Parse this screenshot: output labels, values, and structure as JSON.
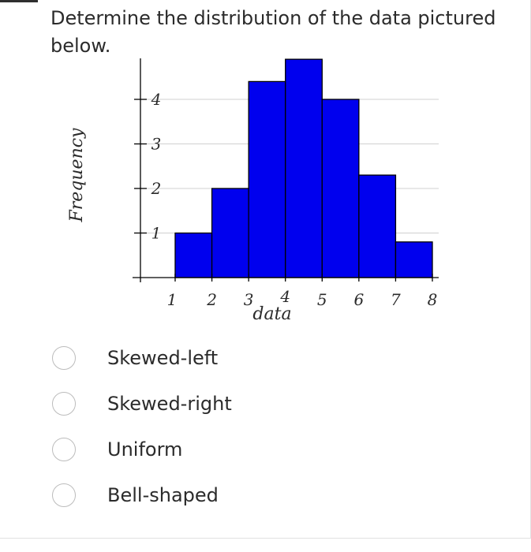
{
  "question": {
    "text": "Determine the distribution of the data pictured below."
  },
  "chart_data": {
    "type": "bar",
    "title": "",
    "xlabel": "data",
    "ylabel": "Frequency",
    "categories": [
      "1-2",
      "2-3",
      "3-4",
      "4-5",
      "5-6",
      "6-7",
      "7-8"
    ],
    "bin_edges": [
      1,
      2,
      3,
      4,
      5,
      6,
      7,
      8
    ],
    "values": [
      1,
      2,
      4.4,
      4.9,
      4.0,
      2.3,
      0.8
    ],
    "x_ticks": [
      "1",
      "2",
      "3",
      "4",
      "5",
      "6",
      "7",
      "8"
    ],
    "y_ticks": [
      "1",
      "2",
      "3",
      "4"
    ],
    "xlim": [
      0,
      8.2
    ],
    "ylim": [
      0,
      5.2
    ],
    "grid": true,
    "bar_color": "#0000ee",
    "edge_color": "#000000"
  },
  "options": [
    {
      "label": "Skewed-left"
    },
    {
      "label": "Skewed-right"
    },
    {
      "label": "Uniform"
    },
    {
      "label": "Bell-shaped"
    }
  ],
  "colors": {
    "bar": "#0000ee",
    "grid": "#d0d0d0",
    "radio_border": "#bcbcbc"
  }
}
